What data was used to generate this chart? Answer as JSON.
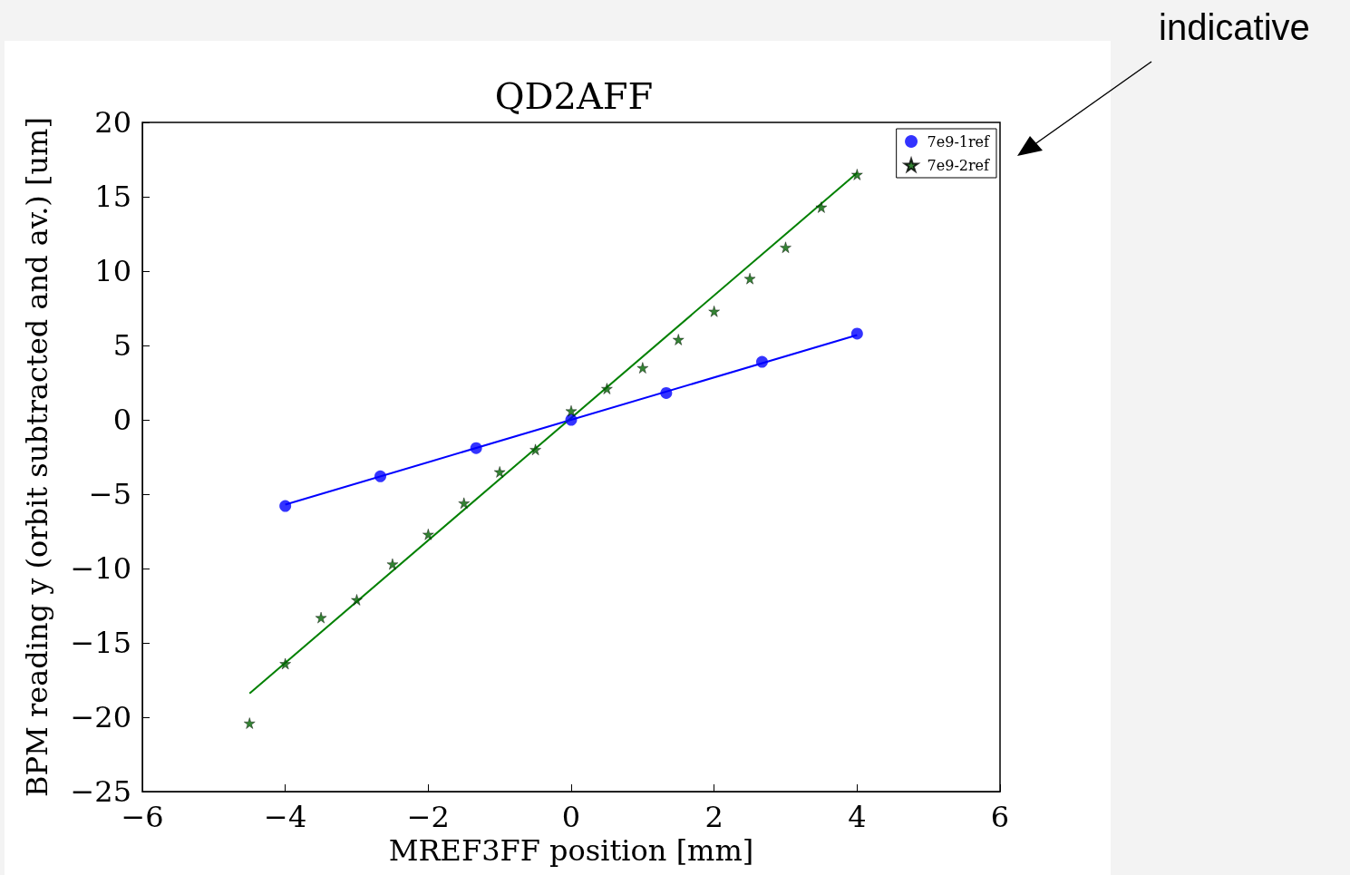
{
  "chart_data": {
    "type": "scatter",
    "title": "QD2AFF",
    "xlabel": "MREF3FF position [mm]",
    "ylabel": "BPM reading y (orbit subtracted and av.) [um]",
    "xlim": [
      -6,
      6
    ],
    "xticks": [
      {
        "value": -6,
        "label": "−6"
      },
      {
        "value": -4,
        "label": "−4"
      },
      {
        "value": -2,
        "label": "−2"
      },
      0,
      2,
      4,
      6
    ],
    "ylim": [
      -25,
      20
    ],
    "yticks": [
      {
        "value": -25,
        "label": "−25"
      },
      {
        "value": -20,
        "label": "−20"
      },
      {
        "value": -15,
        "label": "−15"
      },
      {
        "value": -10,
        "label": "−10"
      },
      {
        "value": -5,
        "label": "−5"
      },
      0,
      5,
      10,
      15,
      20
    ],
    "legend": "top right",
    "annotations": [
      "indicative"
    ],
    "series": [
      {
        "name": "7e9-1ref",
        "color": "#0000ff",
        "marker": "circle",
        "x": [
          -4,
          -2.67,
          -1.33,
          0,
          1.33,
          2.67,
          4
        ],
        "values": [
          -5.8,
          -3.8,
          -1.9,
          0,
          1.8,
          3.9,
          5.8
        ]
      },
      {
        "name": "7e9-2ref",
        "color": "#006400",
        "marker": "star",
        "x": [
          -4.5,
          -4,
          -3.5,
          -3,
          -2.5,
          -2,
          -1.5,
          -1,
          -0.5,
          0,
          0.5,
          1,
          1.5,
          2,
          2.5,
          3,
          3.5,
          4
        ],
        "values": [
          -20.4,
          -16.4,
          -13.3,
          -12.1,
          -9.7,
          -7.7,
          -5.6,
          -3.5,
          -2.0,
          0.6,
          2.1,
          3.5,
          5.4,
          7.3,
          9.5,
          11.6,
          14.3,
          16.5
        ]
      },
      {
        "type": "line",
        "color": "#0000ff",
        "marker": "none",
        "x": [
          -4,
          4
        ],
        "values": [
          -5.7,
          5.7
        ]
      },
      {
        "type": "line",
        "color": "#008000",
        "marker": "none",
        "x": [
          -4.5,
          4
        ],
        "values": [
          -18.4,
          16.6
        ]
      }
    ]
  }
}
